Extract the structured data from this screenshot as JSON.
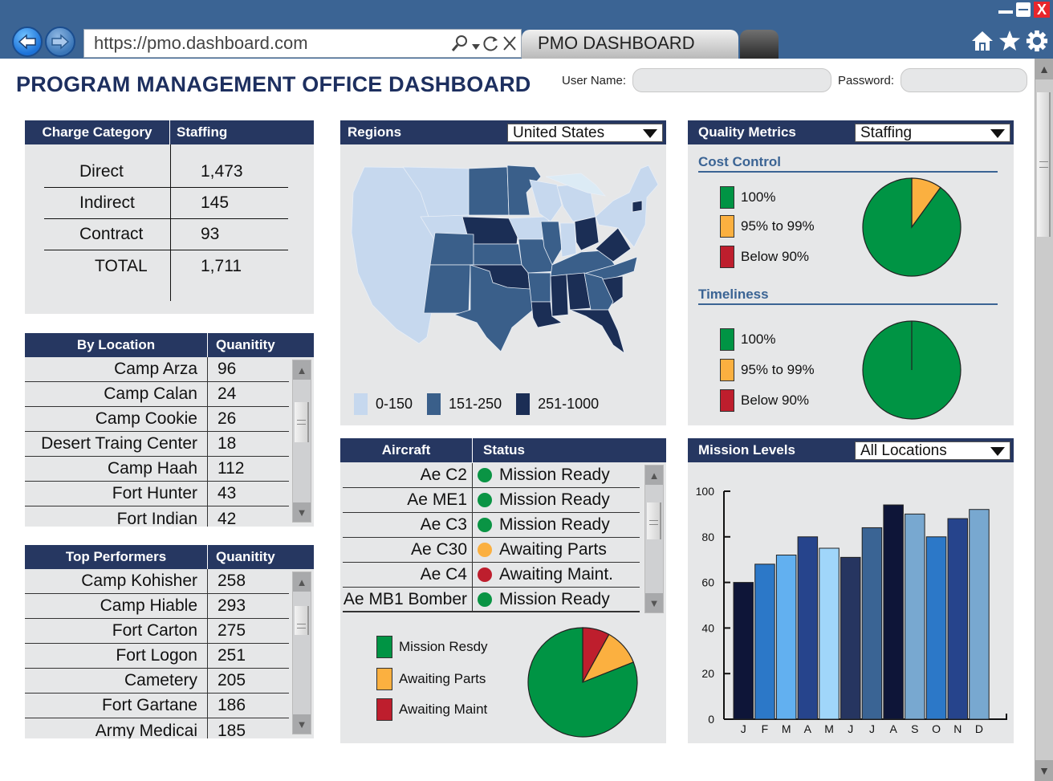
{
  "browser": {
    "url": "https://pmo.dashboard.com",
    "tab_title": "PMO DASHBOARD",
    "window_controls": {
      "minimize": "minimize-icon",
      "maximize": "maximize-icon",
      "close": "X"
    },
    "toolbar_icons": [
      "home-icon",
      "star-icon",
      "gear-icon"
    ],
    "address_icons": [
      "search-icon",
      "dropdown-icon",
      "refresh-icon",
      "stop-icon"
    ]
  },
  "header": {
    "title": "PROGRAM MANAGEMENT OFFICE DASHBOARD",
    "username_label": "User Name:",
    "username_value": "",
    "password_label": "Password:",
    "password_value": ""
  },
  "charge_table": {
    "headers": [
      "Charge Category",
      "Staffing"
    ],
    "rows": [
      {
        "category": "Direct",
        "staffing": "1,473"
      },
      {
        "category": "Indirect",
        "staffing": "145"
      },
      {
        "category": "Contract",
        "staffing": "93"
      },
      {
        "category": "TOTAL",
        "staffing": "1,711"
      }
    ]
  },
  "by_location": {
    "headers": [
      "By Location",
      "Quanitity"
    ],
    "rows": [
      {
        "name": "Camp Arza",
        "qty": "96"
      },
      {
        "name": "Camp Calan",
        "qty": "24"
      },
      {
        "name": "Camp Cookie",
        "qty": "26"
      },
      {
        "name": "Desert Traing Center",
        "qty": "18"
      },
      {
        "name": "Camp Haah",
        "qty": "112"
      },
      {
        "name": "Fort Hunter",
        "qty": "43"
      },
      {
        "name": "Fort Indian",
        "qty": "42"
      }
    ]
  },
  "top_performers": {
    "headers": [
      "Top Performers",
      "Quanitity"
    ],
    "rows": [
      {
        "name": "Camp Kohisher",
        "qty": "258"
      },
      {
        "name": "Camp Hiable",
        "qty": "293"
      },
      {
        "name": "Fort Carton",
        "qty": "275"
      },
      {
        "name": "Fort Logon",
        "qty": "251"
      },
      {
        "name": "Cametery",
        "qty": "205"
      },
      {
        "name": "Fort Gartane",
        "qty": "186"
      },
      {
        "name": "Army Medicai",
        "qty": "185"
      }
    ]
  },
  "regions": {
    "title": "Regions",
    "selected": "United States",
    "legend": [
      {
        "label": "0-150",
        "color": "#c6d8ee"
      },
      {
        "label": "151-250",
        "color": "#3a5f8a"
      },
      {
        "label": "251-1000",
        "color": "#1b2e55"
      }
    ]
  },
  "aircraft": {
    "headers": [
      "Aircraft",
      "Status"
    ],
    "rows": [
      {
        "name": "Ae C2",
        "status": "Mission Ready",
        "color": "#0a9444"
      },
      {
        "name": "Ae ME1",
        "status": "Mission Ready",
        "color": "#0a9444"
      },
      {
        "name": "Ae C3",
        "status": "Mission Ready",
        "color": "#0a9444"
      },
      {
        "name": "Ae C30",
        "status": "Awaiting Parts",
        "color": "#fbb040"
      },
      {
        "name": "Ae C4",
        "status": "Awaiting Maint.",
        "color": "#be1e2d"
      },
      {
        "name": "Ae MB1 Bomber",
        "status": "Mission Ready",
        "color": "#0a9444"
      }
    ],
    "legend": [
      {
        "label": "Mission Resdy",
        "color": "#009444"
      },
      {
        "label": "Awaiting Parts",
        "color": "#fbb040"
      },
      {
        "label": "Awaiting Maint",
        "color": "#be1e2d"
      }
    ]
  },
  "quality": {
    "title": "Quality Metrics",
    "selected": "Staffing",
    "cost_control_title": "Cost Control",
    "timeliness_title": "Timeliness",
    "legend": [
      {
        "label": "100%",
        "color": "#009444"
      },
      {
        "label": "95% to 99%",
        "color": "#fbb040"
      },
      {
        "label": "Below 90%",
        "color": "#be1e2d"
      }
    ]
  },
  "mission": {
    "title": "Mission Levels",
    "selected": "All Locations"
  },
  "chart_data": [
    {
      "id": "aircraft-status-pie",
      "type": "pie",
      "title": "",
      "labels": [
        "Mission Resdy",
        "Awaiting Parts",
        "Awaiting Maint"
      ],
      "values": [
        81,
        11,
        8
      ],
      "colors": [
        "#009444",
        "#fbb040",
        "#be1e2d"
      ]
    },
    {
      "id": "cost-control-pie",
      "type": "pie",
      "title": "Cost Control",
      "labels": [
        "100%",
        "95% to 99%",
        "Below 90%"
      ],
      "values": [
        90,
        10,
        0
      ],
      "colors": [
        "#009444",
        "#fbb040",
        "#be1e2d"
      ]
    },
    {
      "id": "timeliness-pie",
      "type": "pie",
      "title": "Timeliness",
      "labels": [
        "100%",
        "95% to 99%",
        "Below 90%"
      ],
      "values": [
        100,
        0,
        0
      ],
      "colors": [
        "#009444",
        "#fbb040",
        "#be1e2d"
      ]
    },
    {
      "id": "mission-levels-bar",
      "type": "bar",
      "title": "Mission Levels",
      "categories": [
        "J",
        "F",
        "M",
        "A",
        "M",
        "J",
        "J",
        "A",
        "S",
        "O",
        "N",
        "D"
      ],
      "values": [
        60,
        68,
        72,
        80,
        75,
        71,
        84,
        94,
        90,
        80,
        88,
        92
      ],
      "colors": [
        "#0e1538",
        "#2c78c8",
        "#62b0f0",
        "#26448c",
        "#a0d6fa",
        "#263560",
        "#3a6494",
        "#0e1538",
        "#78a8d0",
        "#2c78c8",
        "#26448c",
        "#78a8d0"
      ],
      "xlabel": "",
      "ylabel": "",
      "yticks": [
        0,
        20,
        40,
        60,
        80,
        100
      ],
      "ylim": [
        0,
        100
      ],
      "grid": false
    }
  ]
}
